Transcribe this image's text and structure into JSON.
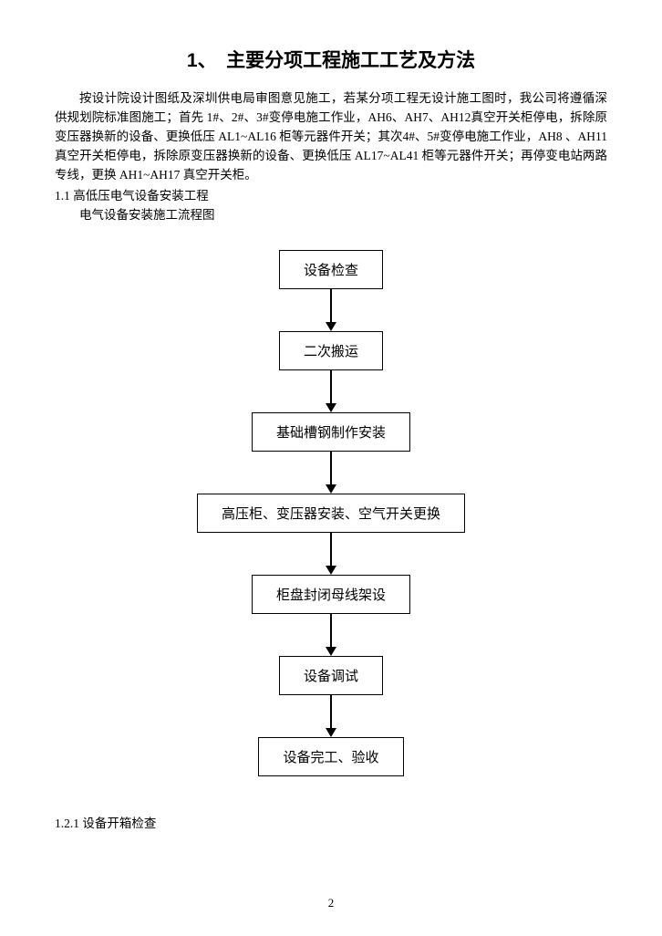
{
  "heading": "1、　主要分项工程施工工艺及方法",
  "paragraph": "按设计院设计图纸及深圳供电局审图意见施工，若某分项工程无设计施工图时，我公司将遵循深供规划院标准图施工；首先 1#、2#、3#变停电施工作业，AH6、AH7、AH12真空开关柜停电，拆除原变压器换新的设备、更换低压 AL1~AL16 柜等元器件开关；其次4#、5#变停电施工作业，AH8 、AH11 真空开关柜停电，拆除原变压器换新的设备、更换低压 AL17~AL41 柜等元器件开关；再停变电站两路专线，更换 AH1~AH17 真空开关柜。",
  "section1_1": "1.1 高低压电气设备安装工程",
  "section1_1_sub": "电气设备安装施工流程图",
  "flowchart": {
    "nodes": [
      "设备检查",
      "二次搬运",
      "基础槽钢制作安装",
      "高压柜、变压器安装、空气开关更换",
      "柜盘封闭母线架设",
      "设备调试",
      "设备完工、验收"
    ]
  },
  "section1_2_1": "1.2.1 设备开箱检查",
  "page_number": "2"
}
